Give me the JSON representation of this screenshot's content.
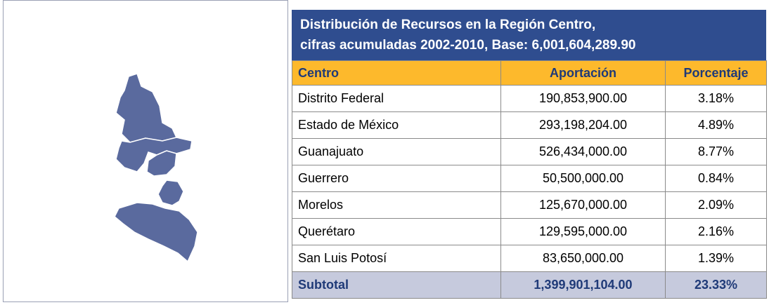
{
  "title": [
    "Distribución de Recursos en la Región Centro,",
    "cifras acumuladas 2002-2010, Base:  6,001,604,289.90"
  ],
  "table": {
    "header": [
      "Centro",
      "Aportación",
      "Porcentaje"
    ],
    "rows": [
      [
        "Distrito Federal",
        "190,853,900.00",
        "3.18%"
      ],
      [
        "Estado de México",
        "293,198,204.00",
        "4.89%"
      ],
      [
        "Guanajuato",
        "526,434,000.00",
        "8.77%"
      ],
      [
        "Guerrero",
        "50,500,000.00",
        "0.84%"
      ],
      [
        "Morelos",
        "125,670,000.00",
        "2.09%"
      ],
      [
        "Querétaro",
        "129,595,000.00",
        "2.16%"
      ],
      [
        "San Luis Potosí",
        "83,650,000.00",
        "1.39%"
      ]
    ],
    "subtotal": [
      "Subtotal",
      "1,399,901,104.00",
      "23.33%"
    ]
  }
}
